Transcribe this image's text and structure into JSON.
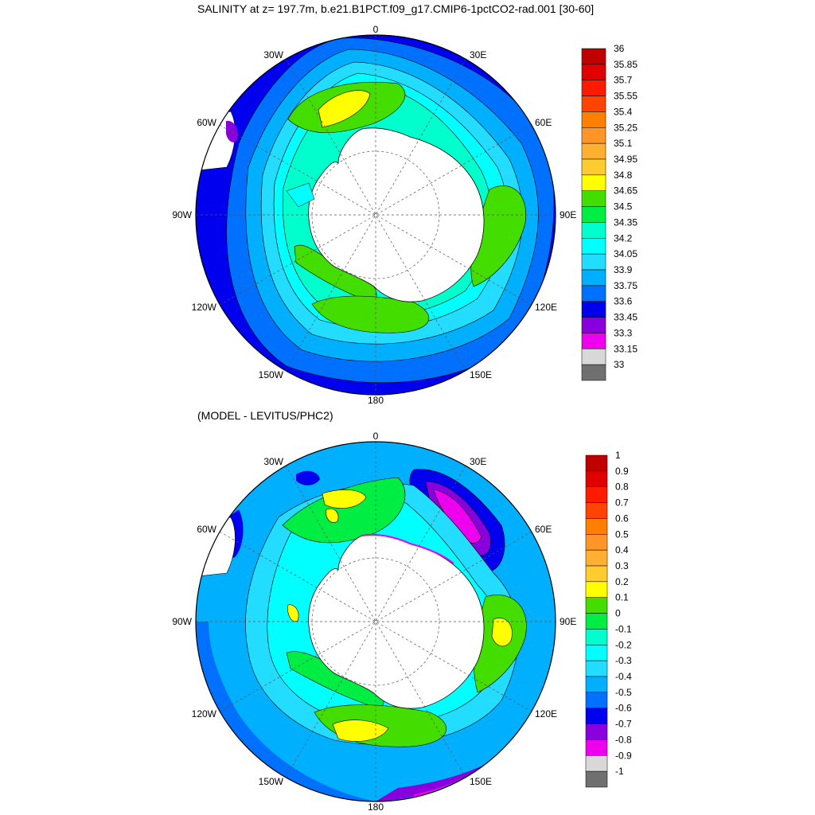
{
  "panels": [
    {
      "id": "top",
      "title": "SALINITY at z= 197.7m, b.e21.B1PCT.f09_g17.CMIP6-1pctCO2-rad.001 [30-60]",
      "lon_labels": [
        "0",
        "30E",
        "60E",
        "90E",
        "120E",
        "150E",
        "180",
        "150W",
        "120W",
        "90W",
        "60W",
        "30W"
      ],
      "colorbar": {
        "labels": [
          "36",
          "35.85",
          "35.7",
          "35.55",
          "35.4",
          "35.25",
          "35.1",
          "34.95",
          "34.8",
          "34.65",
          "34.5",
          "34.35",
          "34.2",
          "34.05",
          "33.9",
          "33.75",
          "33.6",
          "33.45",
          "33.3",
          "33.15",
          "33"
        ],
        "colors": [
          "#c00000",
          "#e00000",
          "#ff1a00",
          "#ff4400",
          "#ff8000",
          "#ff9428",
          "#ffb030",
          "#ffcc30",
          "#ffff00",
          "#44dd00",
          "#00ee44",
          "#00ffcc",
          "#00ffff",
          "#22ddff",
          "#00b0ff",
          "#0070ff",
          "#0000ee",
          "#8800dd",
          "#ee00ee",
          "#d8d8d8",
          "#707070"
        ]
      }
    },
    {
      "id": "bottom",
      "title": "(MODEL - LEVITUS/PHC2)",
      "lon_labels": [
        "0",
        "30E",
        "60E",
        "90E",
        "120E",
        "150E",
        "180",
        "150W",
        "120W",
        "90W",
        "60W",
        "30W"
      ],
      "colorbar": {
        "labels": [
          "1",
          "0.9",
          "0.8",
          "0.7",
          "0.6",
          "0.5",
          "0.4",
          "0.3",
          "0.2",
          "0.1",
          "0",
          "-0.1",
          "-0.2",
          "-0.3",
          "-0.4",
          "-0.5",
          "-0.6",
          "-0.7",
          "-0.8",
          "-0.9",
          "-1"
        ],
        "colors": [
          "#c00000",
          "#e00000",
          "#ff1a00",
          "#ff4400",
          "#ff8000",
          "#ff9428",
          "#ffb030",
          "#ffcc30",
          "#ffff00",
          "#44dd00",
          "#00ee44",
          "#00ffcc",
          "#00ffff",
          "#22ddff",
          "#00b0ff",
          "#0070ff",
          "#0000ee",
          "#8800dd",
          "#ee00ee",
          "#d8d8d8",
          "#707070"
        ]
      }
    }
  ]
}
